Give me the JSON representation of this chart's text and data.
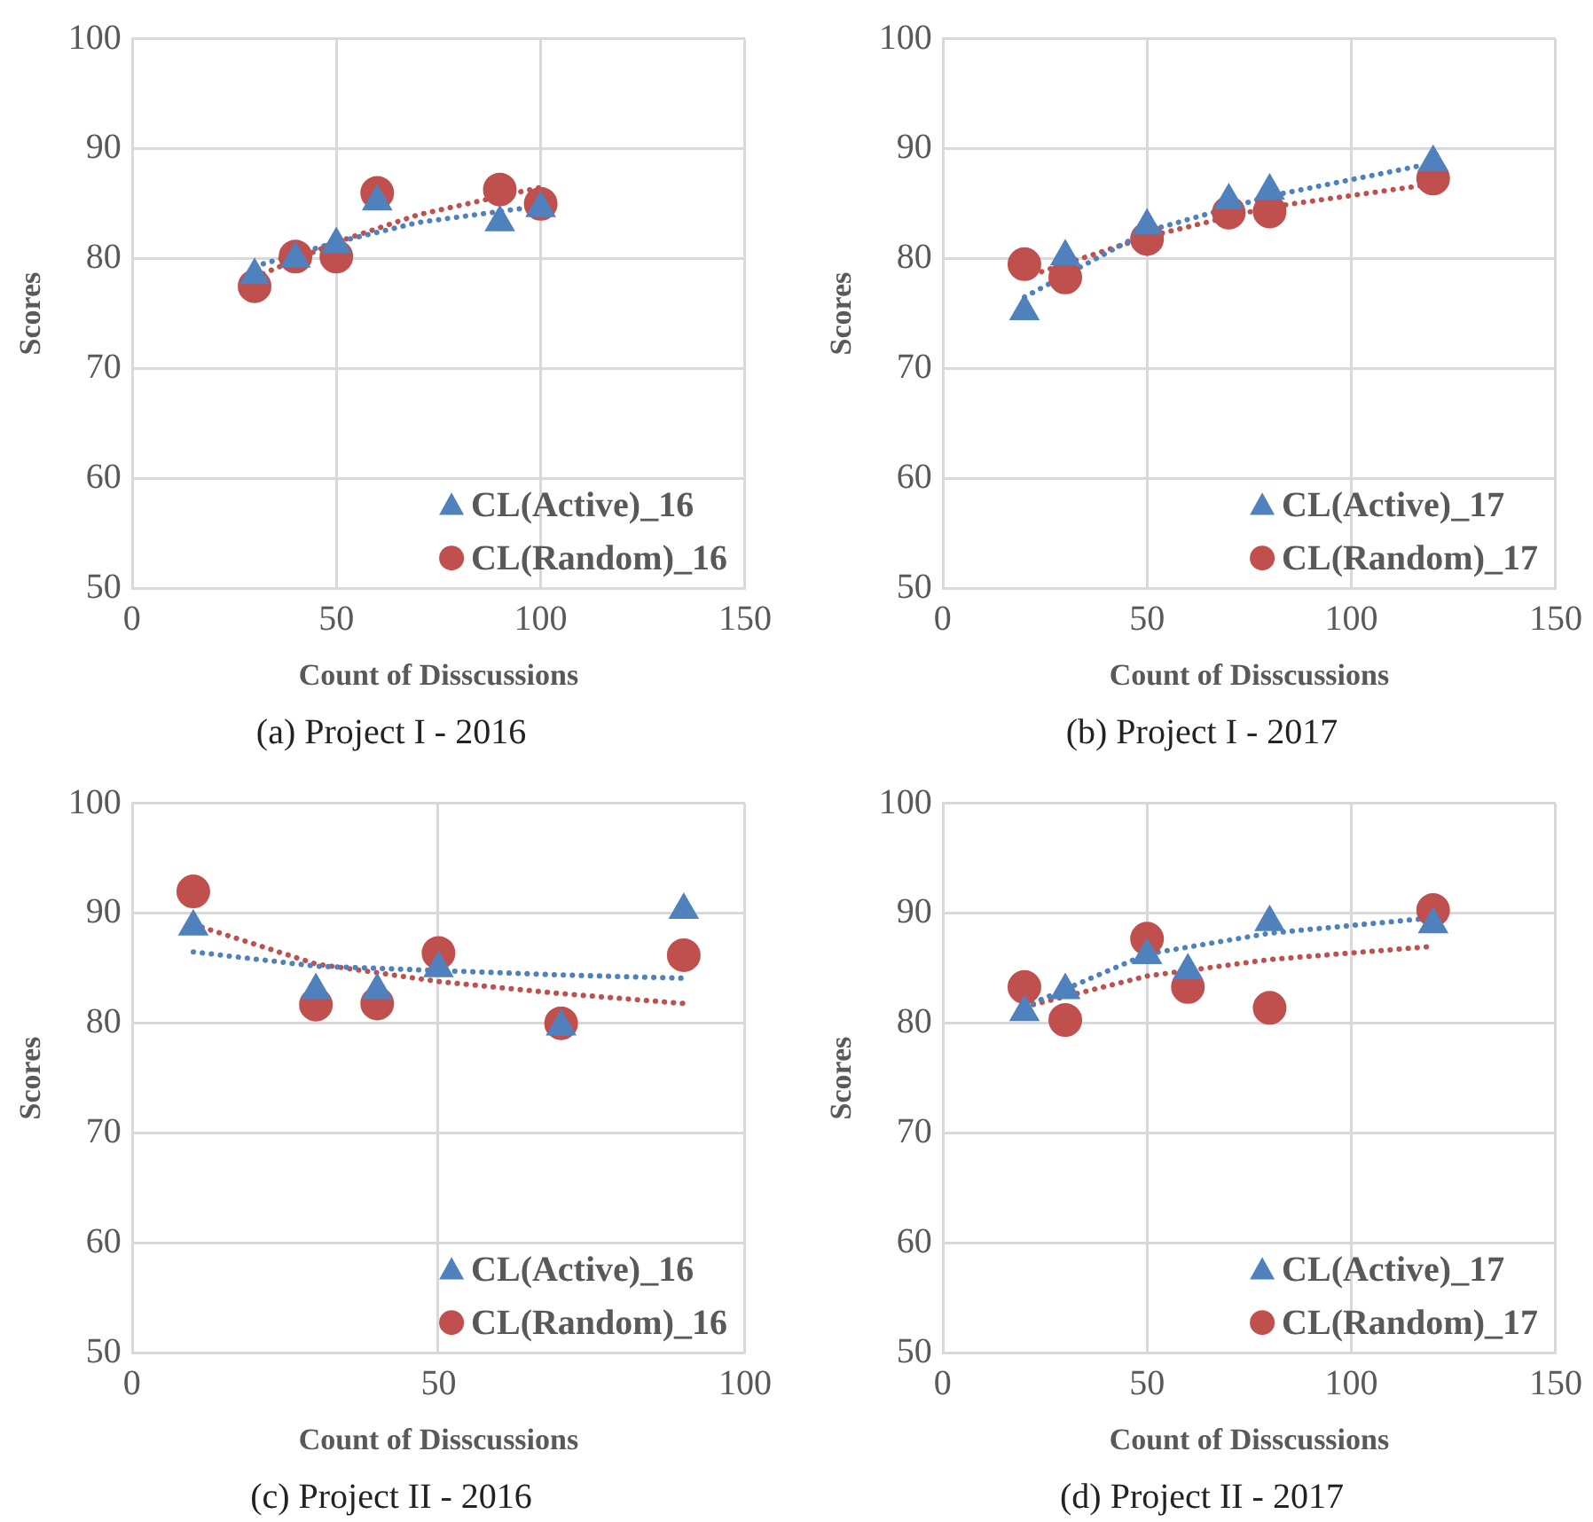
{
  "chart_data": [
    {
      "type": "scatter",
      "title": "(a) Project I - 2016",
      "xlabel": "Count of Disscussions",
      "ylabel": "Scores",
      "xlim": [
        0,
        150
      ],
      "xticks": [
        0,
        50,
        100,
        150
      ],
      "ylim": [
        50,
        100
      ],
      "yticks": [
        50,
        60,
        70,
        80,
        90,
        100
      ],
      "grid": true,
      "legend": "bottom right",
      "series": [
        {
          "name": "CL(Active)_16",
          "color": "#4f81bd",
          "marker": "triangle",
          "x": [
            30,
            40,
            50,
            60,
            90,
            100
          ],
          "values": [
            78.5,
            80,
            81.3,
            85.2,
            83.3,
            84.6
          ]
        },
        {
          "name": "CL(Random)_16",
          "color": "#c0504d",
          "marker": "circle",
          "x": [
            30,
            40,
            50,
            60,
            90,
            100
          ],
          "values": [
            77.5,
            80.2,
            80.2,
            86,
            86.3,
            85
          ]
        },
        {
          "type": "line",
          "color": "#4f81bd",
          "marker": "none",
          "line_style": "dotted",
          "x": [
            30,
            50,
            70,
            100
          ],
          "values": [
            79.3,
            81.5,
            83.3,
            84.8
          ]
        },
        {
          "type": "line",
          "color": "#c0504d",
          "marker": "none",
          "line_style": "dotted",
          "x": [
            30,
            50,
            70,
            100
          ],
          "values": [
            78.3,
            81.5,
            84,
            86.5
          ]
        }
      ]
    },
    {
      "type": "scatter",
      "title": "(b) Project I - 2017",
      "xlabel": "Count of Disscussions",
      "ylabel": "Scores",
      "xlim": [
        0,
        150
      ],
      "xticks": [
        0,
        50,
        100,
        150
      ],
      "ylim": [
        50,
        100
      ],
      "yticks": [
        50,
        60,
        70,
        80,
        90,
        100
      ],
      "grid": true,
      "legend": "bottom right",
      "series": [
        {
          "name": "CL(Active)_17",
          "color": "#4f81bd",
          "marker": "triangle",
          "x": [
            20,
            30,
            50,
            70,
            80,
            120
          ],
          "values": [
            75.2,
            80.2,
            83,
            85.3,
            86.2,
            88.8
          ]
        },
        {
          "name": "CL(Random)_17",
          "color": "#c0504d",
          "marker": "circle",
          "x": [
            20,
            30,
            50,
            70,
            80,
            120
          ],
          "values": [
            79.5,
            78.3,
            81.8,
            84.2,
            84.3,
            87.3
          ]
        },
        {
          "type": "line",
          "color": "#4f81bd",
          "marker": "none",
          "line_style": "dotted",
          "x": [
            20,
            50,
            80,
            120
          ],
          "values": [
            76.5,
            82.5,
            85.7,
            88.7
          ]
        },
        {
          "type": "line",
          "color": "#c0504d",
          "marker": "none",
          "line_style": "dotted",
          "x": [
            20,
            50,
            80,
            120
          ],
          "values": [
            78.3,
            82,
            84.7,
            86.8
          ]
        }
      ]
    },
    {
      "type": "scatter",
      "title": "(c) Project II - 2016",
      "xlabel": "Count of Disscussions",
      "ylabel": "Scores",
      "xlim": [
        0,
        100
      ],
      "xticks": [
        0,
        50,
        100
      ],
      "ylim": [
        50,
        100
      ],
      "yticks": [
        50,
        60,
        70,
        80,
        90,
        100
      ],
      "grid": true,
      "legend": "bottom right",
      "series": [
        {
          "name": "CL(Active)_16",
          "color": "#4f81bd",
          "marker": "triangle",
          "x": [
            10,
            30,
            40,
            50,
            70,
            90
          ],
          "values": [
            88.8,
            83,
            83,
            85,
            79.7,
            90.3
          ]
        },
        {
          "name": "CL(Random)_16",
          "color": "#c0504d",
          "marker": "circle",
          "x": [
            10,
            30,
            40,
            50,
            70,
            90
          ],
          "values": [
            92,
            81.7,
            81.8,
            86.4,
            80,
            86.2
          ]
        },
        {
          "type": "line",
          "color": "#4f81bd",
          "marker": "none",
          "line_style": "dotted",
          "x": [
            10,
            30,
            50,
            70,
            90
          ],
          "values": [
            86.5,
            85.2,
            84.8,
            84.4,
            84.1
          ]
        },
        {
          "type": "line",
          "color": "#c0504d",
          "marker": "none",
          "line_style": "dotted",
          "x": [
            10,
            30,
            50,
            70,
            90
          ],
          "values": [
            89,
            85.4,
            83.8,
            82.7,
            81.8
          ]
        }
      ]
    },
    {
      "type": "scatter",
      "title": "(d) Project II - 2017",
      "xlabel": "Count of Disscussions",
      "ylabel": "Scores",
      "xlim": [
        0,
        150
      ],
      "xticks": [
        0,
        50,
        100,
        150
      ],
      "ylim": [
        50,
        100
      ],
      "yticks": [
        50,
        60,
        70,
        80,
        90,
        100
      ],
      "grid": true,
      "legend": "bottom right",
      "series": [
        {
          "name": "CL(Active)_17",
          "color": "#4f81bd",
          "marker": "triangle",
          "x": [
            20,
            30,
            50,
            60,
            80,
            120
          ],
          "values": [
            81,
            83,
            86.2,
            84.8,
            89.2,
            89
          ]
        },
        {
          "name": "CL(Random)_17",
          "color": "#c0504d",
          "marker": "circle",
          "x": [
            20,
            30,
            50,
            60,
            80,
            120
          ],
          "values": [
            83.3,
            80.3,
            87.7,
            83.3,
            81.4,
            90.3
          ]
        },
        {
          "type": "line",
          "color": "#4f81bd",
          "marker": "none",
          "line_style": "dotted",
          "x": [
            20,
            50,
            80,
            120
          ],
          "values": [
            81.5,
            86.3,
            88.2,
            89.6
          ]
        },
        {
          "type": "line",
          "color": "#c0504d",
          "marker": "none",
          "line_style": "dotted",
          "x": [
            20,
            50,
            80,
            120
          ],
          "values": [
            81.5,
            84.3,
            85.8,
            87
          ]
        }
      ]
    }
  ]
}
